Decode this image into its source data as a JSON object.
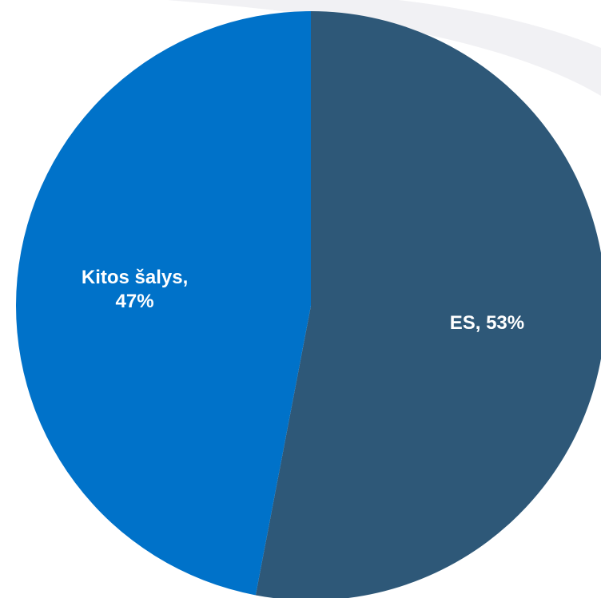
{
  "chart_data": {
    "type": "pie",
    "slices": [
      {
        "label": "ES",
        "value": 53,
        "data_label": [
          "ES, 53%"
        ],
        "color": "#2e5878"
      },
      {
        "label": "Kitos šalys",
        "value": 47,
        "data_label": [
          "Kitos šalys,",
          "47%"
        ],
        "color": "#0072c9"
      }
    ],
    "start_angle_deg": 0,
    "direction": "clockwise",
    "background_decoration_color": "#f1f1f4"
  }
}
